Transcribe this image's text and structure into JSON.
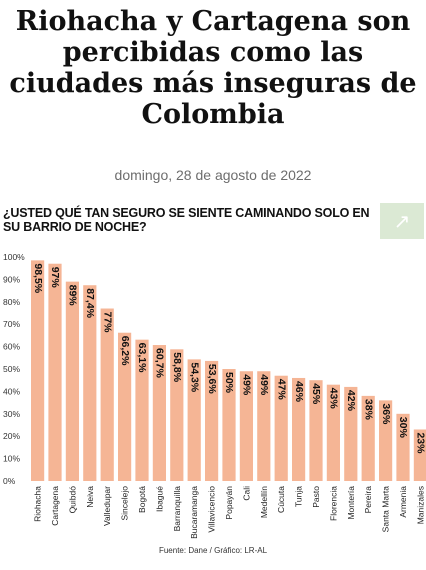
{
  "article": {
    "title": "Riohacha y Cartagena son percibidas como las ciudades más inseguras de Colombia",
    "date": "domingo, 28 de agosto de 2022"
  },
  "expand_icon": "arrow-up-right-icon",
  "colors": {
    "bar": "#f5b595",
    "expand_bg": "#dbe9d4"
  },
  "chart_data": {
    "type": "bar",
    "title": "¿USTED QUÉ TAN SEGURO SE SIENTE CAMINANDO SOLO EN SU BARRIO DE NOCHE?",
    "categories": [
      "Riohacha",
      "Cartagena",
      "Quibdó",
      "Neiva",
      "Valledupar",
      "Sincelejo",
      "Bogotá",
      "Ibagué",
      "Barranquilla",
      "Bucaramanga",
      "Villavicencio",
      "Popayán",
      "Cali",
      "Medellín",
      "Cúcuta",
      "Tunja",
      "Pasto",
      "Florencia",
      "Montería",
      "Pereira",
      "Santa Marta",
      "Armenia",
      "Manizales"
    ],
    "values": [
      98.5,
      97,
      89,
      87.4,
      77,
      66.2,
      63.1,
      60.7,
      58.8,
      54.3,
      53.6,
      50,
      49,
      49,
      47,
      46,
      45,
      43,
      42,
      38,
      36,
      30,
      23
    ],
    "labels": [
      "98,5%",
      "97%",
      "89%",
      "87,4%",
      "77%",
      "66,2%",
      "63,1%",
      "60,7%",
      "58,8%",
      "54,3%",
      "53,6%",
      "50%",
      "49%",
      "49%",
      "47%",
      "46%",
      "45%",
      "43%",
      "42%",
      "38%",
      "36%",
      "30%",
      "23%"
    ],
    "yticks": [
      "0%",
      "10%",
      "20%",
      "30%",
      "40%",
      "50%",
      "60%",
      "70%",
      "80%",
      "90%",
      "100%"
    ],
    "ylim": [
      0,
      100
    ],
    "grid": false,
    "source": "Fuente: Dane / Gráfico: LR-AL"
  }
}
